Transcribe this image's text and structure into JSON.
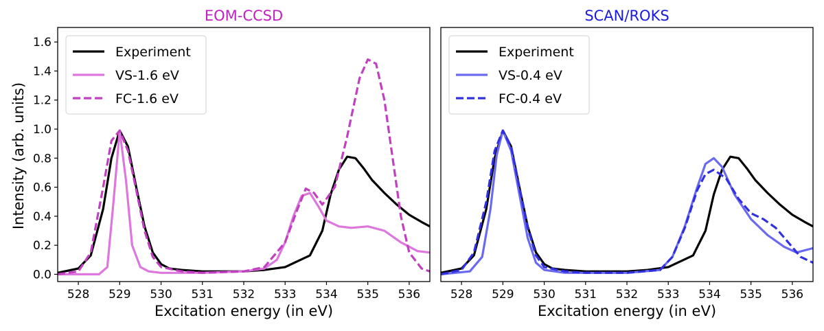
{
  "figure": {
    "ylabel": "Intensity (arb. units)"
  },
  "chart_data": [
    {
      "type": "line",
      "title": "EOM-CCSD",
      "title_color": "#c020c0",
      "xlabel": "Excitation energy (in eV)",
      "ylabel": "Intensity (arb. units)",
      "xlim": [
        527.5,
        536.5
      ],
      "ylim": [
        -0.05,
        1.7
      ],
      "xticks": [
        528,
        529,
        530,
        531,
        532,
        533,
        534,
        535,
        536
      ],
      "yticks": [
        0.0,
        0.2,
        0.4,
        0.6,
        0.8,
        1.0,
        1.2,
        1.4,
        1.6
      ],
      "legend_position": "top-left",
      "series": [
        {
          "name": "Experiment",
          "color": "#000000",
          "style": "solid",
          "x": [
            527.5,
            528.0,
            528.3,
            528.6,
            528.8,
            529.0,
            529.2,
            529.4,
            529.6,
            529.8,
            530.0,
            530.2,
            530.5,
            531.0,
            531.5,
            532.0,
            532.5,
            533.0,
            533.3,
            533.6,
            533.9,
            534.1,
            534.3,
            534.5,
            534.7,
            534.9,
            535.1,
            535.4,
            535.7,
            536.0,
            536.3,
            536.5
          ],
          "y": [
            0.01,
            0.04,
            0.13,
            0.45,
            0.8,
            0.99,
            0.88,
            0.6,
            0.33,
            0.15,
            0.07,
            0.04,
            0.03,
            0.02,
            0.02,
            0.02,
            0.03,
            0.05,
            0.09,
            0.13,
            0.3,
            0.55,
            0.72,
            0.81,
            0.8,
            0.73,
            0.65,
            0.56,
            0.48,
            0.41,
            0.36,
            0.33
          ]
        },
        {
          "name": "VS-1.6 eV",
          "color": "#dd77dd",
          "style": "solid",
          "x": [
            527.5,
            528.5,
            528.7,
            528.85,
            529.0,
            529.15,
            529.3,
            529.5,
            529.7,
            530.0,
            531.0,
            532.0,
            532.5,
            532.8,
            533.0,
            533.2,
            533.4,
            533.6,
            533.8,
            534.0,
            534.3,
            534.6,
            535.0,
            535.4,
            535.8,
            536.2,
            536.5
          ],
          "y": [
            0.0,
            0.0,
            0.05,
            0.5,
            0.99,
            0.65,
            0.2,
            0.05,
            0.02,
            0.01,
            0.01,
            0.02,
            0.04,
            0.1,
            0.22,
            0.4,
            0.54,
            0.56,
            0.47,
            0.37,
            0.33,
            0.32,
            0.33,
            0.3,
            0.22,
            0.16,
            0.15
          ]
        },
        {
          "name": "FC-1.6 eV",
          "color": "#c040c0",
          "style": "dashed",
          "x": [
            527.5,
            528.0,
            528.3,
            528.6,
            528.8,
            529.0,
            529.2,
            529.4,
            529.6,
            529.8,
            530.0,
            530.5,
            531.0,
            532.0,
            532.5,
            533.0,
            533.3,
            533.5,
            533.7,
            533.9,
            534.2,
            534.5,
            534.8,
            535.0,
            535.2,
            535.4,
            535.6,
            535.8,
            536.0,
            536.3,
            536.5
          ],
          "y": [
            0.0,
            0.02,
            0.15,
            0.6,
            0.92,
            0.99,
            0.85,
            0.58,
            0.3,
            0.12,
            0.05,
            0.02,
            0.01,
            0.02,
            0.05,
            0.22,
            0.45,
            0.59,
            0.56,
            0.48,
            0.6,
            0.95,
            1.35,
            1.48,
            1.45,
            1.2,
            0.8,
            0.4,
            0.15,
            0.04,
            0.02
          ]
        }
      ]
    },
    {
      "type": "line",
      "title": "SCAN/ROKS",
      "title_color": "#1a1ae0",
      "xlabel": "Excitation energy (in eV)",
      "ylabel": "",
      "xlim": [
        527.5,
        536.5
      ],
      "ylim": [
        -0.05,
        1.7
      ],
      "xticks": [
        528,
        529,
        530,
        531,
        532,
        533,
        534,
        535,
        536
      ],
      "yticks": [],
      "legend_position": "top-left",
      "series": [
        {
          "name": "Experiment",
          "color": "#000000",
          "style": "solid",
          "x": [
            527.5,
            528.0,
            528.3,
            528.6,
            528.8,
            529.0,
            529.2,
            529.4,
            529.6,
            529.8,
            530.0,
            530.2,
            530.5,
            531.0,
            531.5,
            532.0,
            532.5,
            533.0,
            533.3,
            533.6,
            533.9,
            534.1,
            534.3,
            534.5,
            534.7,
            534.9,
            535.1,
            535.4,
            535.7,
            536.0,
            536.3,
            536.5
          ],
          "y": [
            0.01,
            0.04,
            0.13,
            0.45,
            0.8,
            0.99,
            0.88,
            0.6,
            0.33,
            0.15,
            0.07,
            0.04,
            0.03,
            0.02,
            0.02,
            0.02,
            0.03,
            0.05,
            0.09,
            0.13,
            0.3,
            0.55,
            0.72,
            0.81,
            0.8,
            0.73,
            0.65,
            0.56,
            0.48,
            0.41,
            0.36,
            0.33
          ]
        },
        {
          "name": "VS-0.4 eV",
          "color": "#6a6af0",
          "style": "solid",
          "x": [
            527.5,
            528.2,
            528.5,
            528.7,
            528.85,
            529.0,
            529.2,
            529.4,
            529.6,
            529.8,
            530.0,
            530.5,
            531.0,
            532.0,
            532.8,
            533.1,
            533.4,
            533.7,
            533.9,
            534.1,
            534.3,
            534.6,
            535.0,
            535.4,
            535.8,
            536.1,
            536.5
          ],
          "y": [
            0.0,
            0.02,
            0.12,
            0.45,
            0.82,
            0.99,
            0.85,
            0.55,
            0.25,
            0.08,
            0.03,
            0.01,
            0.01,
            0.01,
            0.03,
            0.12,
            0.33,
            0.6,
            0.76,
            0.8,
            0.74,
            0.55,
            0.38,
            0.27,
            0.19,
            0.15,
            0.18
          ]
        },
        {
          "name": "FC-0.4 eV",
          "color": "#3030e0",
          "style": "dashed",
          "x": [
            527.5,
            528.0,
            528.3,
            528.6,
            528.8,
            529.0,
            529.2,
            529.4,
            529.6,
            529.8,
            530.0,
            530.5,
            531.0,
            532.0,
            532.8,
            533.1,
            533.4,
            533.7,
            533.9,
            534.1,
            534.4,
            534.7,
            535.0,
            535.3,
            535.6,
            535.9,
            536.2,
            536.5
          ],
          "y": [
            0.0,
            0.03,
            0.15,
            0.5,
            0.85,
            0.99,
            0.88,
            0.6,
            0.32,
            0.13,
            0.05,
            0.02,
            0.01,
            0.01,
            0.03,
            0.12,
            0.32,
            0.58,
            0.69,
            0.72,
            0.66,
            0.52,
            0.42,
            0.38,
            0.32,
            0.22,
            0.12,
            0.08
          ]
        }
      ]
    }
  ]
}
